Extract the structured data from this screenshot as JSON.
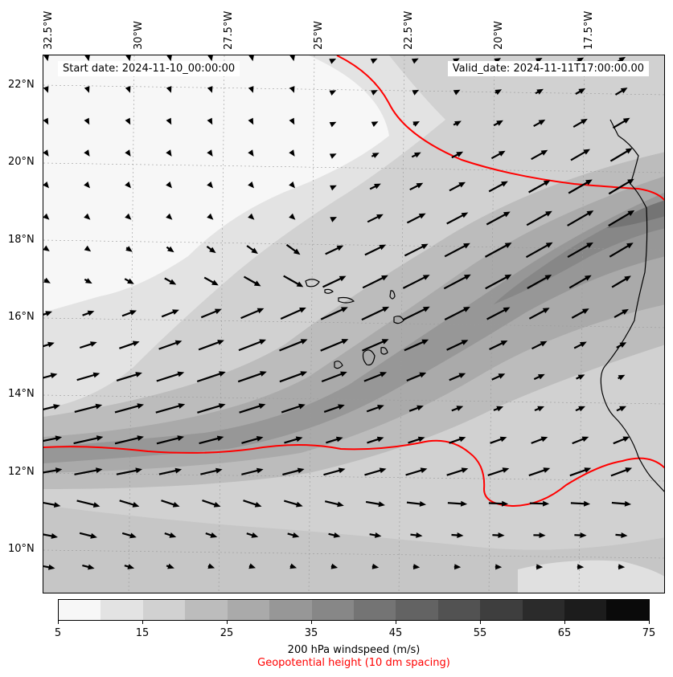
{
  "map": {
    "start_date": "Start date: 2024-11-10_00:00:00",
    "valid_date": "Valid_date: 2024-11-11T17:00:00.00",
    "longitude_labels": [
      "32.5°W",
      "30°W",
      "27.5°W",
      "25°W",
      "22.5°W",
      "20°W",
      "17.5°W"
    ],
    "latitude_labels": [
      "22°N",
      "20°N",
      "18°N",
      "16°N",
      "14°N",
      "12°N",
      "10°N"
    ],
    "lon_range": [
      -33.0,
      -15.5
    ],
    "lat_range": [
      8.8,
      22.8
    ],
    "field_colors": [
      "#f7f7f7",
      "#e3e3e3",
      "#d1d1d1",
      "#bcbcbc",
      "#aaaaaa",
      "#979797",
      "#878787",
      "#747474"
    ],
    "contour_color": "#ff0000",
    "arrow_color": "#000000",
    "coastline_color": "#000000"
  },
  "colorbar": {
    "tick_labels": [
      "5",
      "15",
      "25",
      "35",
      "45",
      "55",
      "65",
      "75"
    ],
    "colors": [
      "#f7f7f7",
      "#e3e3e3",
      "#d1d1d1",
      "#bcbcbc",
      "#aaaaaa",
      "#979797",
      "#878787",
      "#747474",
      "#636363",
      "#525252",
      "#3e3e3e",
      "#2b2b2b",
      "#1c1c1c",
      "#0a0a0a"
    ],
    "label": "200 hPa windspeed (m/s)",
    "geopotential_label": "Geopotential height (10 dm spacing)"
  }
}
